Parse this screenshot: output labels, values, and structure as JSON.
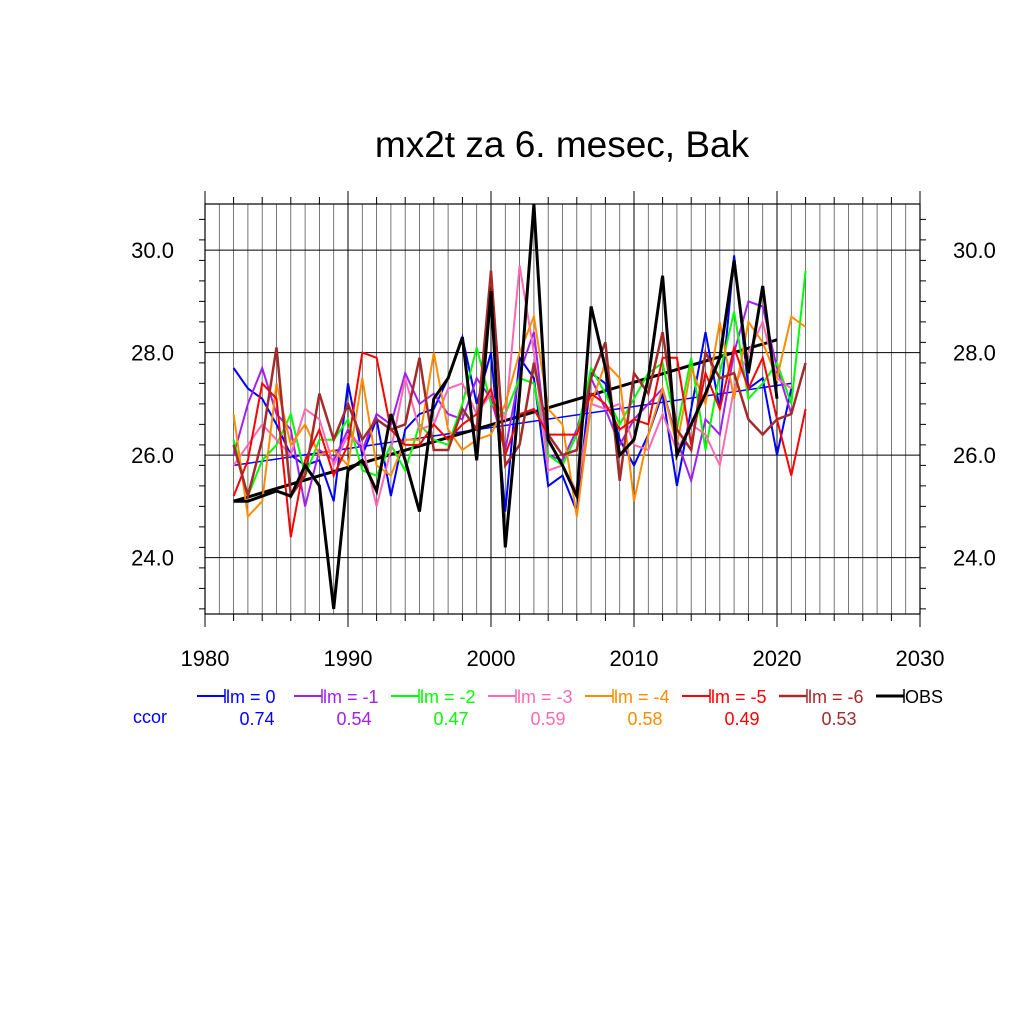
{
  "chart_data": {
    "type": "line",
    "title": "mx2t za 6. mesec, Bak",
    "xlabel": "",
    "ylabel": "",
    "xlim": [
      1980,
      2030
    ],
    "ylim": [
      22.9,
      30.9
    ],
    "x_ticks": [
      1980,
      1990,
      2000,
      2010,
      2020,
      2030
    ],
    "x_tick_labels": [
      "1980",
      "1990",
      "2000",
      "2010",
      "2020",
      "2030"
    ],
    "y_ticks": [
      24.0,
      26.0,
      28.0,
      30.0
    ],
    "y_tick_labels": [
      "24.0",
      "26.0",
      "28.0",
      "30.0"
    ],
    "grid": true,
    "legend_position": "below",
    "ccor_label": "ccor",
    "series": [
      {
        "name": "lm = 0",
        "ccor": "0.74",
        "color": "#0000ff",
        "width": 2,
        "x": [
          1982,
          1983,
          1984,
          1985,
          1986,
          1987,
          1988,
          1989,
          1990,
          1991,
          1992,
          1993,
          1994,
          1995,
          1996,
          1997,
          1998,
          1999,
          2000,
          2001,
          2002,
          2003,
          2004,
          2005,
          2006,
          2007,
          2008,
          2009,
          2010,
          2011,
          2012,
          2013,
          2014,
          2015,
          2016,
          2017,
          2018,
          2019,
          2020,
          2021
        ],
        "values": [
          27.7,
          27.3,
          27.1,
          26.6,
          26.0,
          25.8,
          25.9,
          25.1,
          27.4,
          26.0,
          26.7,
          25.2,
          26.5,
          26.8,
          26.9,
          27.5,
          28.3,
          27.0,
          28.0,
          24.9,
          27.9,
          27.5,
          25.4,
          25.6,
          24.9,
          27.6,
          27.4,
          26.3,
          25.8,
          26.4,
          27.2,
          25.4,
          26.9,
          28.4,
          26.9,
          29.9,
          27.3,
          27.5,
          26.0,
          27.3
        ]
      },
      {
        "name": "lm = -1",
        "ccor": "0.54",
        "color": "#a020f0",
        "width": 2,
        "x": [
          1982,
          1983,
          1984,
          1985,
          1986,
          1987,
          1988,
          1989,
          1990,
          1991,
          1992,
          1993,
          1994,
          1995,
          1996,
          1997,
          1998,
          1999,
          2000,
          2001,
          2002,
          2003,
          2004,
          2005,
          2006,
          2007,
          2008,
          2009,
          2010,
          2011,
          2012,
          2013,
          2014,
          2015,
          2016,
          2017,
          2018,
          2019,
          2020,
          2021
        ],
        "values": [
          26.0,
          27.0,
          27.7,
          26.8,
          26.5,
          25.0,
          26.1,
          25.9,
          26.5,
          26.1,
          26.8,
          26.6,
          27.6,
          27.0,
          27.2,
          26.8,
          26.7,
          27.5,
          27.1,
          26.1,
          27.6,
          28.4,
          26.0,
          25.9,
          26.5,
          27.5,
          26.9,
          26.2,
          26.7,
          27.0,
          27.3,
          26.3,
          25.5,
          26.7,
          26.4,
          28.0,
          29.0,
          28.9,
          27.7,
          26.8
        ]
      },
      {
        "name": "lm = -2",
        "ccor": "0.47",
        "color": "#00ff00",
        "width": 2,
        "x": [
          1982,
          1983,
          1984,
          1985,
          1986,
          1987,
          1988,
          1989,
          1990,
          1991,
          1992,
          1993,
          1994,
          1995,
          1996,
          1997,
          1998,
          1999,
          2000,
          2001,
          2002,
          2003,
          2004,
          2005,
          2006,
          2007,
          2008,
          2009,
          2010,
          2011,
          2012,
          2013,
          2014,
          2015,
          2016,
          2017,
          2018,
          2019,
          2020,
          2021,
          2022
        ],
        "values": [
          26.3,
          25.2,
          25.9,
          26.2,
          26.8,
          25.6,
          26.3,
          26.3,
          26.7,
          25.7,
          25.6,
          26.2,
          25.7,
          26.6,
          26.3,
          26.2,
          27.0,
          28.1,
          27.0,
          26.8,
          27.5,
          27.4,
          26.0,
          25.8,
          26.4,
          27.7,
          27.2,
          26.6,
          27.1,
          27.6,
          27.8,
          26.5,
          27.9,
          26.1,
          27.6,
          28.8,
          27.1,
          27.4,
          27.8,
          27.0,
          29.6
        ]
      },
      {
        "name": "lm = -3",
        "ccor": "0.59",
        "color": "#ff69b4",
        "width": 2,
        "x": [
          1982,
          1983,
          1984,
          1985,
          1986,
          1987,
          1988,
          1989,
          1990,
          1991,
          1992,
          1993,
          1994,
          1995,
          1996,
          1997,
          1998,
          1999,
          2000,
          2001,
          2002,
          2003,
          2004,
          2005,
          2006,
          2007,
          2008,
          2009,
          2010,
          2011,
          2012,
          2013,
          2014,
          2015,
          2016,
          2017,
          2018,
          2019,
          2020,
          2021
        ],
        "values": [
          25.8,
          26.2,
          26.6,
          26.3,
          26.0,
          26.9,
          26.7,
          25.8,
          26.4,
          26.2,
          25.0,
          26.1,
          27.5,
          26.5,
          26.6,
          27.3,
          27.4,
          26.8,
          27.2,
          26.7,
          29.7,
          28.0,
          25.7,
          25.8,
          25.3,
          27.0,
          26.9,
          27.0,
          26.2,
          26.1,
          26.8,
          26.1,
          26.6,
          26.4,
          25.8,
          27.3,
          28.0,
          28.6,
          27.5,
          27.3
        ]
      },
      {
        "name": "lm = -4",
        "ccor": "0.58",
        "color": "#ff8c00",
        "width": 2,
        "x": [
          1982,
          1983,
          1984,
          1985,
          1986,
          1987,
          1988,
          1989,
          1990,
          1991,
          1992,
          1993,
          1994,
          1995,
          1996,
          1997,
          1998,
          1999,
          2000,
          2001,
          2002,
          2003,
          2004,
          2005,
          2006,
          2007,
          2008,
          2009,
          2010,
          2011,
          2012,
          2013,
          2014,
          2015,
          2016,
          2017,
          2018,
          2019,
          2020,
          2021,
          2022
        ],
        "values": [
          26.8,
          24.8,
          25.1,
          27.4,
          26.2,
          26.6,
          26.0,
          26.1,
          25.8,
          27.5,
          25.8,
          25.6,
          26.3,
          26.3,
          28.0,
          26.5,
          26.1,
          26.3,
          26.4,
          27.0,
          28.0,
          28.7,
          26.9,
          26.6,
          24.8,
          27.0,
          27.8,
          27.5,
          25.1,
          26.4,
          27.3,
          26.2,
          27.7,
          27.0,
          28.6,
          27.1,
          28.6,
          28.2,
          27.5,
          28.7,
          28.5
        ]
      },
      {
        "name": "lm = -5",
        "ccor": "0.49",
        "color": "#ff0000",
        "width": 2,
        "x": [
          1982,
          1983,
          1984,
          1985,
          1986,
          1987,
          1988,
          1989,
          1990,
          1991,
          1992,
          1993,
          1994,
          1995,
          1996,
          1997,
          1998,
          1999,
          2000,
          2001,
          2002,
          2003,
          2004,
          2005,
          2006,
          2007,
          2008,
          2009,
          2010,
          2011,
          2012,
          2013,
          2014,
          2015,
          2016,
          2017,
          2018,
          2019,
          2020,
          2021,
          2022
        ],
        "values": [
          25.2,
          25.9,
          27.4,
          27.1,
          24.4,
          25.9,
          26.5,
          25.6,
          26.2,
          28.0,
          27.9,
          26.5,
          26.2,
          26.2,
          26.6,
          26.3,
          26.6,
          26.8,
          27.3,
          26.0,
          26.8,
          26.9,
          26.4,
          26.4,
          26.4,
          27.2,
          27.0,
          26.5,
          26.7,
          26.6,
          27.9,
          27.9,
          26.2,
          27.6,
          26.9,
          28.1,
          27.3,
          27.9,
          26.7,
          25.6,
          26.9
        ]
      },
      {
        "name": "lm = -6",
        "ccor": "0.53",
        "color": "#a52a2a",
        "width": 2.5,
        "x": [
          1982,
          1983,
          1984,
          1985,
          1986,
          1987,
          1988,
          1989,
          1990,
          1991,
          1992,
          1993,
          1994,
          1995,
          1996,
          1997,
          1998,
          1999,
          2000,
          2001,
          2002,
          2003,
          2004,
          2005,
          2006,
          2007,
          2008,
          2009,
          2010,
          2011,
          2012,
          2013,
          2014,
          2015,
          2016,
          2017,
          2018,
          2019,
          2020,
          2021,
          2022
        ],
        "values": [
          26.2,
          25.2,
          26.3,
          28.1,
          25.2,
          25.6,
          27.2,
          26.3,
          27.0,
          26.3,
          26.7,
          26.5,
          26.6,
          27.9,
          26.1,
          26.1,
          26.9,
          26.5,
          29.6,
          25.8,
          26.2,
          27.8,
          26.4,
          26.0,
          26.1,
          27.5,
          28.2,
          25.5,
          27.6,
          27.2,
          28.4,
          26.5,
          26.1,
          28.0,
          27.5,
          27.6,
          26.7,
          26.4,
          26.7,
          26.8,
          27.8
        ]
      },
      {
        "name": "OBS",
        "ccor": "",
        "color": "#000000",
        "width": 3,
        "x": [
          1982,
          1983,
          1984,
          1985,
          1986,
          1987,
          1988,
          1989,
          1990,
          1991,
          1992,
          1993,
          1994,
          1995,
          1996,
          1997,
          1998,
          1999,
          2000,
          2001,
          2002,
          2003,
          2004,
          2005,
          2006,
          2007,
          2008,
          2009,
          2010,
          2011,
          2012,
          2013,
          2014,
          2015,
          2016,
          2017,
          2018,
          2019,
          2020
        ],
        "values": [
          25.1,
          25.1,
          25.2,
          25.3,
          25.2,
          25.8,
          25.4,
          23.0,
          25.7,
          25.9,
          25.3,
          26.8,
          25.9,
          24.9,
          27.1,
          27.5,
          28.3,
          25.9,
          29.2,
          24.2,
          27.2,
          30.9,
          26.3,
          25.8,
          25.2,
          28.9,
          27.7,
          26.0,
          26.3,
          27.5,
          29.5,
          26.0,
          26.6,
          27.2,
          27.9,
          29.8,
          27.6,
          29.3,
          27.1
        ]
      }
    ],
    "trend_lines": [
      {
        "series": "lm = 0",
        "color": "#0000ff",
        "width": 1.5,
        "x": [
          1982,
          2021
        ],
        "values": [
          25.8,
          27.4
        ]
      },
      {
        "series": "OBS",
        "color": "#000000",
        "width": 3,
        "x": [
          1982,
          2020
        ],
        "values": [
          25.1,
          28.25
        ]
      }
    ]
  }
}
